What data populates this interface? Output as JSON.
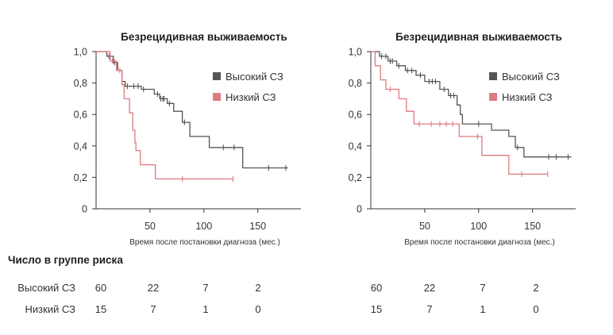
{
  "chart_data": [
    {
      "type": "line",
      "subtype": "kaplan-meier",
      "title": "Безрецидивная выживаемость",
      "xlabel": "Время после постановки диагноза (мес.)",
      "ylabel": "",
      "xlim": [
        0,
        190
      ],
      "ylim": [
        0,
        1
      ],
      "xticks": [
        50,
        100,
        150
      ],
      "xtick_labels": [
        "50",
        "100",
        "150"
      ],
      "yticks": [
        0,
        0.2,
        0.4,
        0.6,
        0.8,
        1.0
      ],
      "ytick_labels": [
        "0",
        "0,2",
        "0,4",
        "0,6",
        "0,8",
        "1,0"
      ],
      "legend_position": "top-right",
      "series": [
        {
          "name": "Высокий СЗ",
          "color": "#555555",
          "steps": [
            [
              0,
              1.0
            ],
            [
              10,
              0.97
            ],
            [
              16,
              0.93
            ],
            [
              20,
              0.88
            ],
            [
              24,
              0.81
            ],
            [
              27,
              0.78
            ],
            [
              42,
              0.76
            ],
            [
              54,
              0.73
            ],
            [
              59,
              0.7
            ],
            [
              66,
              0.67
            ],
            [
              72,
              0.62
            ],
            [
              80,
              0.55
            ],
            [
              87,
              0.46
            ],
            [
              105,
              0.39
            ],
            [
              136,
              0.26
            ],
            [
              178,
              0.26
            ]
          ],
          "censored": [
            [
              12,
              0.97
            ],
            [
              17,
              0.93
            ],
            [
              19,
              0.91
            ],
            [
              29,
              0.78
            ],
            [
              35,
              0.78
            ],
            [
              39,
              0.78
            ],
            [
              44,
              0.76
            ],
            [
              57,
              0.73
            ],
            [
              60,
              0.7
            ],
            [
              62,
              0.7
            ],
            [
              63,
              0.7
            ],
            [
              68,
              0.67
            ],
            [
              82,
              0.55
            ],
            [
              118,
              0.39
            ],
            [
              128,
              0.39
            ],
            [
              160,
              0.26
            ],
            [
              176,
              0.26
            ]
          ]
        },
        {
          "name": "Низкий СЗ",
          "color": "#e07a80",
          "steps": [
            [
              0,
              1.0
            ],
            [
              13,
              0.94
            ],
            [
              19,
              0.88
            ],
            [
              24,
              0.79
            ],
            [
              26,
              0.7
            ],
            [
              31,
              0.61
            ],
            [
              34,
              0.5
            ],
            [
              36,
              0.42
            ],
            [
              37,
              0.37
            ],
            [
              41,
              0.28
            ],
            [
              55,
              0.19
            ],
            [
              127,
              0.19
            ]
          ],
          "censored": [
            [
              15,
              0.94
            ],
            [
              22,
              0.88
            ],
            [
              80,
              0.19
            ],
            [
              127,
              0.19
            ]
          ]
        }
      ]
    },
    {
      "type": "line",
      "subtype": "kaplan-meier",
      "title": "Безрецидивная выживаемость",
      "xlabel": "Время после постановки диагноза (мес.)",
      "ylabel": "",
      "xlim": [
        0,
        190
      ],
      "ylim": [
        0,
        1
      ],
      "xticks": [
        50,
        100,
        150
      ],
      "xtick_labels": [
        "50",
        "100",
        "150"
      ],
      "yticks": [
        0,
        0.2,
        0.4,
        0.6,
        0.8,
        1.0
      ],
      "ytick_labels": [
        "0",
        "0,2",
        "0,4",
        "0,6",
        "0,8",
        "1,0"
      ],
      "legend_position": "top-right",
      "series": [
        {
          "name": "Высокий СЗ",
          "color": "#555555",
          "steps": [
            [
              0,
              1.0
            ],
            [
              8,
              0.97
            ],
            [
              16,
              0.94
            ],
            [
              24,
              0.91
            ],
            [
              32,
              0.88
            ],
            [
              42,
              0.85
            ],
            [
              50,
              0.81
            ],
            [
              64,
              0.76
            ],
            [
              72,
              0.72
            ],
            [
              80,
              0.66
            ],
            [
              83,
              0.6
            ],
            [
              85,
              0.54
            ],
            [
              112,
              0.5
            ],
            [
              128,
              0.46
            ],
            [
              134,
              0.39
            ],
            [
              142,
              0.33
            ],
            [
              186,
              0.33
            ]
          ],
          "censored": [
            [
              10,
              0.97
            ],
            [
              14,
              0.97
            ],
            [
              18,
              0.94
            ],
            [
              20,
              0.94
            ],
            [
              26,
              0.91
            ],
            [
              34,
              0.88
            ],
            [
              38,
              0.88
            ],
            [
              46,
              0.85
            ],
            [
              54,
              0.81
            ],
            [
              57,
              0.81
            ],
            [
              60,
              0.81
            ],
            [
              68,
              0.76
            ],
            [
              74,
              0.72
            ],
            [
              77,
              0.72
            ],
            [
              100,
              0.54
            ],
            [
              136,
              0.39
            ],
            [
              165,
              0.33
            ],
            [
              172,
              0.33
            ],
            [
              183,
              0.33
            ]
          ]
        },
        {
          "name": "Низкий СЗ",
          "color": "#e07a80",
          "steps": [
            [
              0,
              1.0
            ],
            [
              4,
              0.91
            ],
            [
              9,
              0.82
            ],
            [
              14,
              0.76
            ],
            [
              26,
              0.7
            ],
            [
              33,
              0.62
            ],
            [
              40,
              0.54
            ],
            [
              82,
              0.46
            ],
            [
              103,
              0.34
            ],
            [
              128,
              0.22
            ],
            [
              164,
              0.22
            ]
          ],
          "censored": [
            [
              18,
              0.76
            ],
            [
              45,
              0.54
            ],
            [
              56,
              0.54
            ],
            [
              64,
              0.54
            ],
            [
              70,
              0.54
            ],
            [
              76,
              0.54
            ],
            [
              99,
              0.46
            ],
            [
              140,
              0.22
            ],
            [
              164,
              0.22
            ]
          ]
        }
      ]
    }
  ],
  "risk_table": {
    "heading": "Число в группе риска",
    "rows": [
      {
        "label": "Высокий СЗ",
        "left": [
          "60",
          "22",
          "7",
          "2"
        ],
        "right": [
          "60",
          "22",
          "7",
          "2"
        ]
      },
      {
        "label": "Низкий СЗ",
        "left": [
          "15",
          "7",
          "1",
          "0"
        ],
        "right": [
          "15",
          "7",
          "1",
          "0"
        ]
      }
    ]
  }
}
